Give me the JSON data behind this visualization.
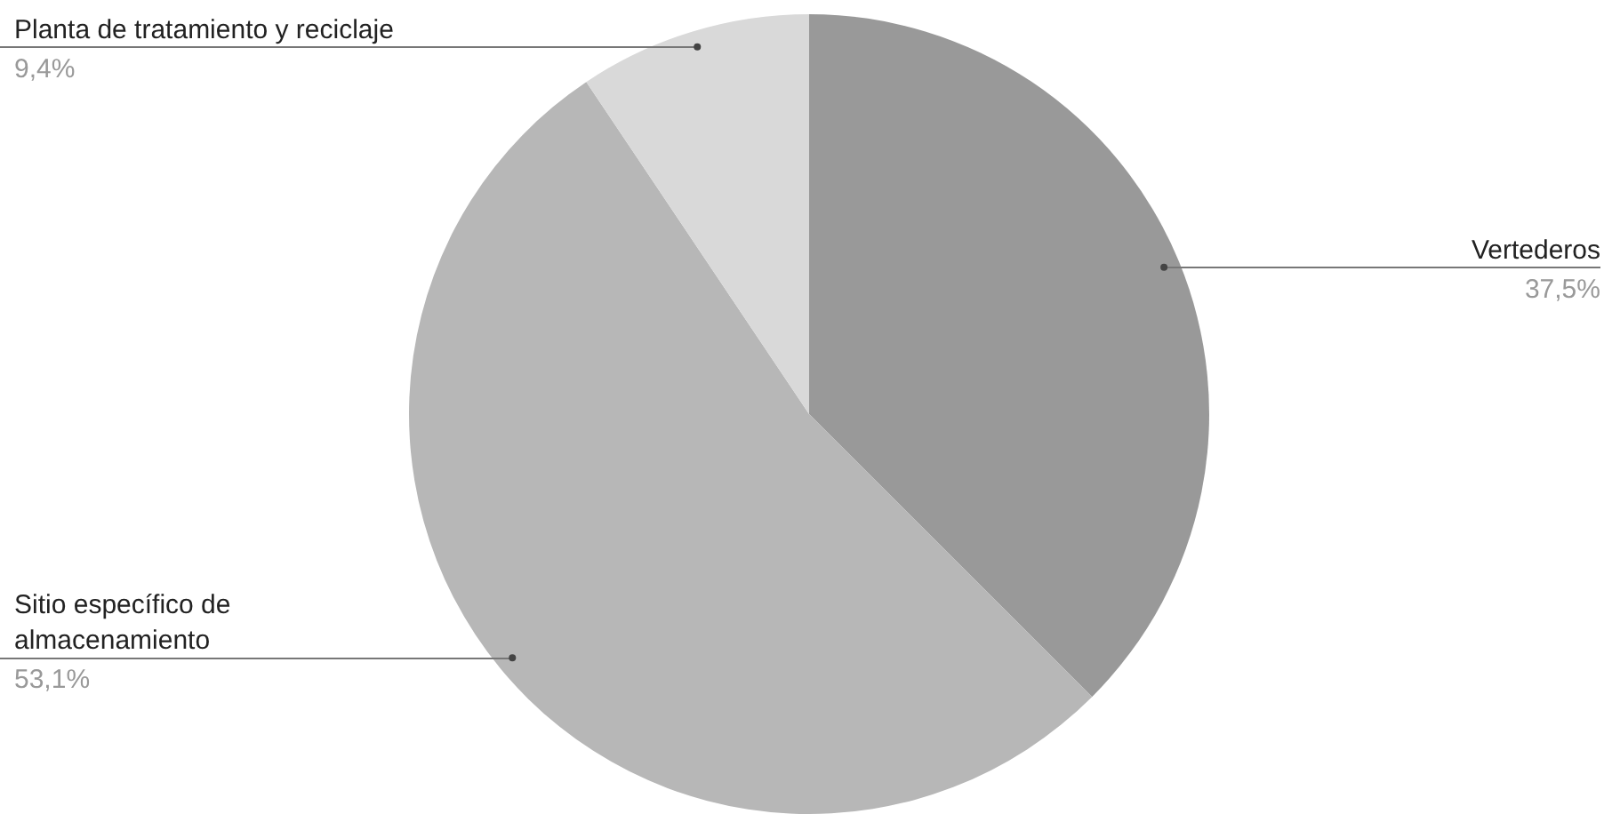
{
  "chart_data": {
    "type": "pie",
    "categories": [
      "Vertederos",
      "Sitio específico de almacenamiento",
      "Planta de tratamiento y reciclaje"
    ],
    "values": [
      37.5,
      53.1,
      9.4
    ],
    "colors": [
      "#999999",
      "#b7b7b7",
      "#d9d9d9"
    ],
    "value_labels": [
      "37,5%",
      "53,1%",
      "9,4%"
    ],
    "legend": false
  }
}
